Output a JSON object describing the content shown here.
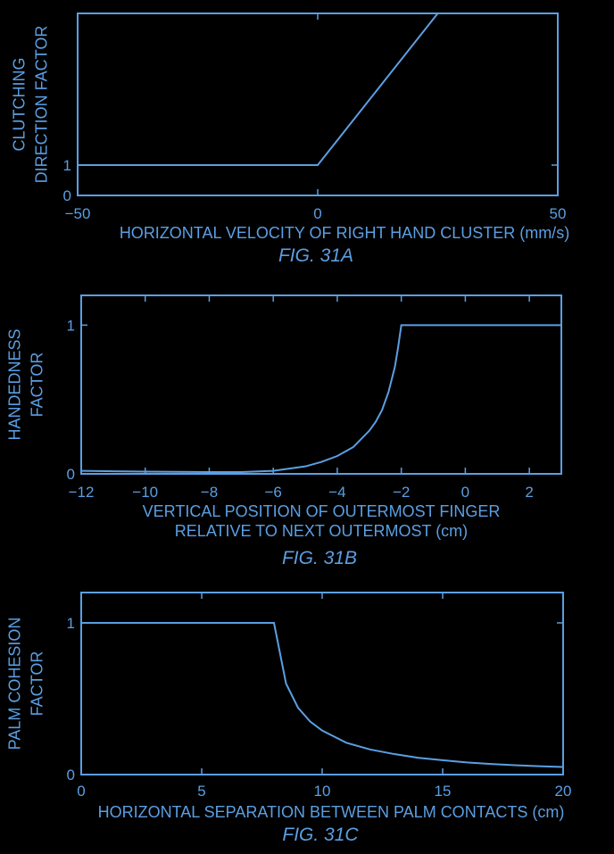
{
  "colors": {
    "background": "#000000",
    "foreground": "#5b9fe3"
  },
  "chart_data": [
    {
      "type": "line",
      "figure_label": "FIG. 31A",
      "xlabel": "HORIZONTAL VELOCITY OF RIGHT HAND CLUSTER (mm/s)",
      "ylabel": [
        "CLUTCHING",
        "DIRECTION FACTOR"
      ],
      "xlim": [
        -50,
        50
      ],
      "ylim": [
        0,
        6
      ],
      "x_ticks": [
        -50,
        0,
        50
      ],
      "x_tick_labels": [
        "−50",
        "0",
        "50"
      ],
      "y_ticks": [
        0,
        1
      ],
      "y_tick_labels": [
        "0",
        "1"
      ],
      "series": [
        {
          "x": [
            -50,
            0,
            25,
            50
          ],
          "y": [
            1,
            1,
            6,
            6
          ]
        }
      ]
    },
    {
      "type": "line",
      "figure_label": "FIG. 31B",
      "xlabel": [
        "VERTICAL POSITION OF OUTERMOST FINGER",
        "RELATIVE TO NEXT OUTERMOST (cm)"
      ],
      "ylabel": [
        "HANDEDNESS",
        "FACTOR"
      ],
      "xlim": [
        -12,
        3
      ],
      "ylim": [
        0,
        1.2
      ],
      "x_ticks": [
        -12,
        -10,
        -8,
        -6,
        -4,
        -2,
        0,
        2
      ],
      "x_tick_labels": [
        "−12",
        "−10",
        "−8",
        "−6",
        "−4",
        "−2",
        "0",
        "2"
      ],
      "y_ticks": [
        0,
        1
      ],
      "y_tick_labels": [
        "0",
        "1"
      ],
      "series": [
        {
          "x": [
            -12,
            -10,
            -8,
            -7,
            -6,
            -5,
            -4.5,
            -4,
            -3.5,
            -3,
            -2.8,
            -2.6,
            -2.4,
            -2.2,
            -2.1,
            -2,
            0,
            3
          ],
          "y": [
            0.02,
            0.015,
            0.012,
            0.012,
            0.02,
            0.05,
            0.08,
            0.12,
            0.18,
            0.29,
            0.35,
            0.43,
            0.55,
            0.72,
            0.85,
            1.0,
            1.0,
            1.0
          ]
        }
      ]
    },
    {
      "type": "line",
      "figure_label": "FIG. 31C",
      "xlabel": "HORIZONTAL SEPARATION BETWEEN PALM CONTACTS (cm)",
      "ylabel": [
        "PALM COHESION",
        "FACTOR"
      ],
      "xlim": [
        0,
        20
      ],
      "ylim": [
        0,
        1.2
      ],
      "x_ticks": [
        0,
        5,
        10,
        15,
        20
      ],
      "x_tick_labels": [
        "0",
        "5",
        "10",
        "15",
        "20"
      ],
      "y_ticks": [
        0,
        1
      ],
      "y_tick_labels": [
        "0",
        "1"
      ],
      "series": [
        {
          "x": [
            0,
            8,
            8.5,
            9,
            9.5,
            10,
            11,
            12,
            13,
            14,
            15,
            16,
            17,
            18,
            19,
            20
          ],
          "y": [
            1,
            1,
            0.6,
            0.44,
            0.35,
            0.29,
            0.21,
            0.165,
            0.135,
            0.11,
            0.095,
            0.08,
            0.07,
            0.062,
            0.055,
            0.05
          ]
        }
      ]
    }
  ]
}
